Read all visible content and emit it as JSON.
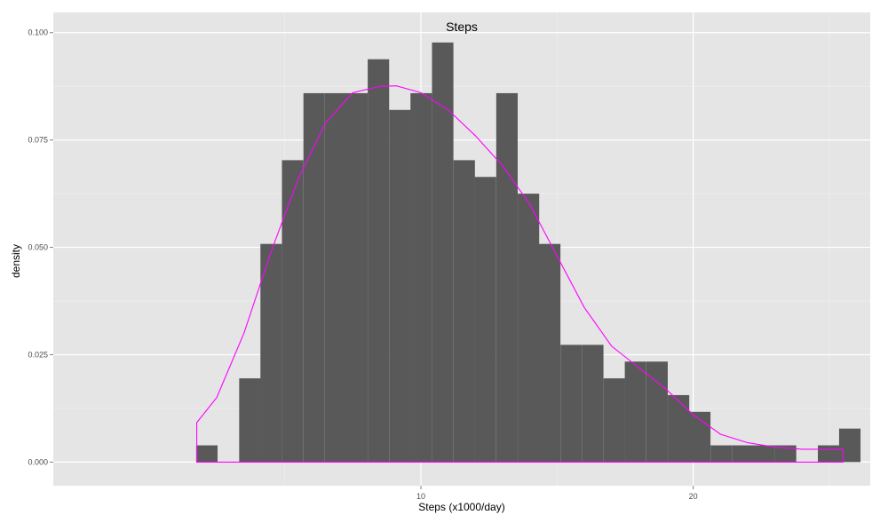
{
  "chart_data": {
    "type": "bar",
    "title": "Steps",
    "xlabel": "Steps (x1000/day)",
    "ylabel": "density",
    "xlim": [
      -3.5,
      26.5
    ],
    "ylim": [
      -0.0055,
      0.1047
    ],
    "x_ticks": [
      {
        "value": 10,
        "label": "10"
      },
      {
        "value": 20,
        "label": "20"
      }
    ],
    "y_ticks": [
      {
        "value": 0.0,
        "label": "0.000"
      },
      {
        "value": 0.025,
        "label": "0.025"
      },
      {
        "value": 0.05,
        "label": "0.050"
      },
      {
        "value": 0.075,
        "label": "0.075"
      },
      {
        "value": 0.1,
        "label": "0.100"
      }
    ],
    "bin_width": 0.787,
    "bins": [
      {
        "x": 2.14,
        "density": 0.0039
      },
      {
        "x": 2.93,
        "density": 0.0
      },
      {
        "x": 3.72,
        "density": 0.0195
      },
      {
        "x": 4.5,
        "density": 0.0508
      },
      {
        "x": 5.29,
        "density": 0.0703
      },
      {
        "x": 6.08,
        "density": 0.0859
      },
      {
        "x": 6.87,
        "density": 0.0859
      },
      {
        "x": 7.65,
        "density": 0.0859
      },
      {
        "x": 8.44,
        "density": 0.0938
      },
      {
        "x": 9.23,
        "density": 0.082
      },
      {
        "x": 10.01,
        "density": 0.0859
      },
      {
        "x": 10.8,
        "density": 0.0977
      },
      {
        "x": 11.59,
        "density": 0.0703
      },
      {
        "x": 12.37,
        "density": 0.0664
      },
      {
        "x": 13.16,
        "density": 0.0859
      },
      {
        "x": 13.95,
        "density": 0.0625
      },
      {
        "x": 14.73,
        "density": 0.0508
      },
      {
        "x": 15.52,
        "density": 0.0273
      },
      {
        "x": 16.31,
        "density": 0.0273
      },
      {
        "x": 17.1,
        "density": 0.0195
      },
      {
        "x": 17.88,
        "density": 0.0234
      },
      {
        "x": 18.67,
        "density": 0.0234
      },
      {
        "x": 19.46,
        "density": 0.0156
      },
      {
        "x": 20.24,
        "density": 0.0117
      },
      {
        "x": 21.03,
        "density": 0.0039
      },
      {
        "x": 21.82,
        "density": 0.0039
      },
      {
        "x": 22.6,
        "density": 0.0039
      },
      {
        "x": 23.39,
        "density": 0.0039
      },
      {
        "x": 24.18,
        "density": 0.0
      },
      {
        "x": 24.97,
        "density": 0.0039
      },
      {
        "x": 25.75,
        "density": 0.0078
      }
    ],
    "density_curve": {
      "color": "#ff00ff",
      "x": [
        1.77,
        2.5,
        3.5,
        4.5,
        5.5,
        6.5,
        7.5,
        8.5,
        9.1,
        10.0,
        11.0,
        12.0,
        13.0,
        14.0,
        15.0,
        16.0,
        17.0,
        18.0,
        19.0,
        20.0,
        21.0,
        22.0,
        23.0,
        24.0,
        24.5,
        25.5
      ],
      "density": [
        0.0092,
        0.015,
        0.03,
        0.049,
        0.066,
        0.079,
        0.086,
        0.0875,
        0.0876,
        0.086,
        0.082,
        0.076,
        0.069,
        0.06,
        0.048,
        0.036,
        0.027,
        0.022,
        0.017,
        0.011,
        0.0065,
        0.0045,
        0.0035,
        0.003,
        0.003,
        0.003
      ]
    },
    "bar_color": "#595959",
    "panel_background": "#e5e5e5",
    "grid": true,
    "legend": "none"
  }
}
